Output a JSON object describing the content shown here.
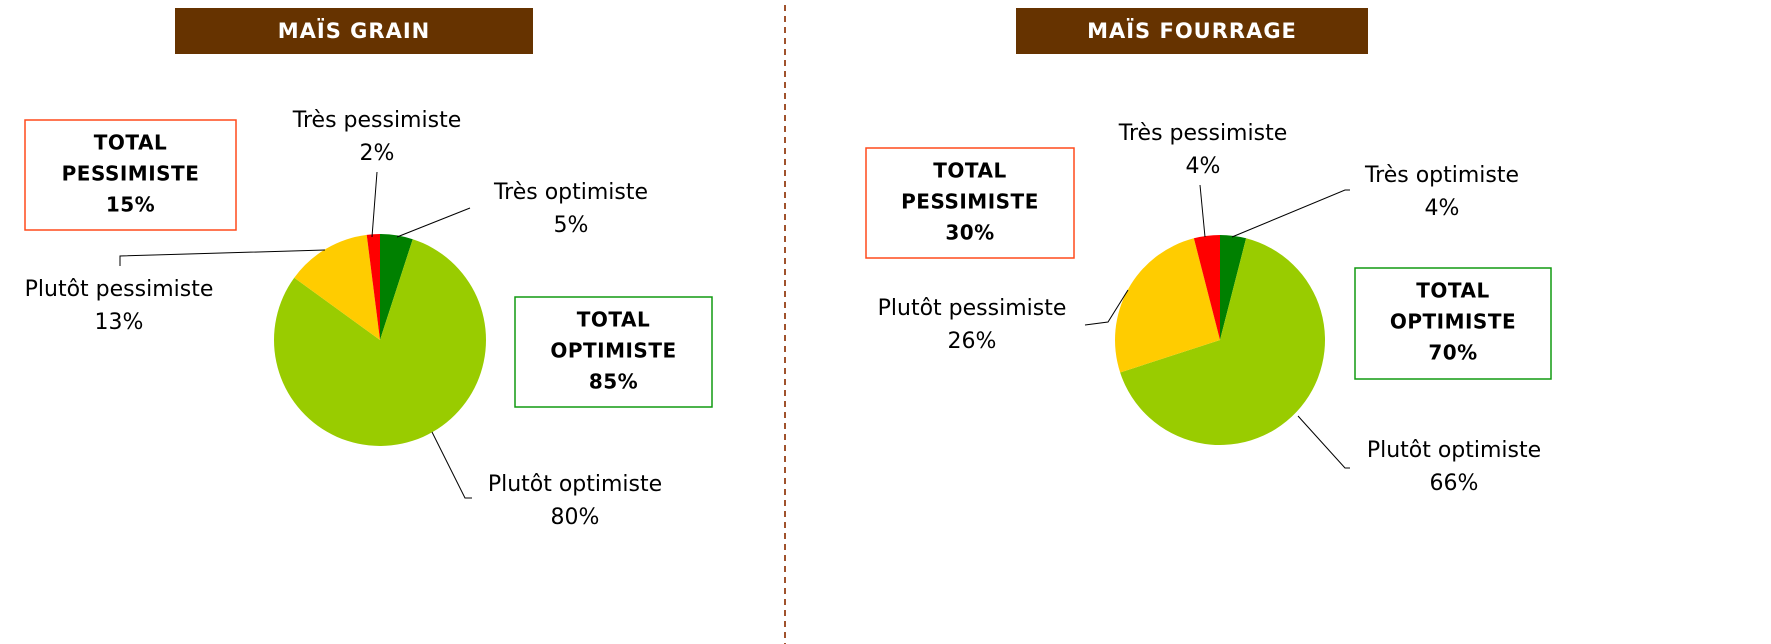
{
  "chart_data": [
    {
      "type": "pie",
      "title": "MAÏS GRAIN",
      "categories": [
        "Très optimiste",
        "Plutôt optimiste",
        "Plutôt pessimiste",
        "Très pessimiste"
      ],
      "values": [
        5,
        80,
        13,
        2
      ],
      "value_labels": [
        "5%",
        "80%",
        "13%",
        "2%"
      ],
      "colors": [
        "#008000",
        "#99cc00",
        "#ffcc00",
        "#ff0000"
      ],
      "annotations": [
        {
          "label_lines": [
            "TOTAL",
            "PESSIMISTE"
          ],
          "value": 15,
          "value_label": "15%",
          "color": "#ff4a1c"
        },
        {
          "label_lines": [
            "TOTAL",
            "OPTIMISTE"
          ],
          "value": 85,
          "value_label": "85%",
          "color": "#109a10"
        }
      ]
    },
    {
      "type": "pie",
      "title": "MAÏS FOURRAGE",
      "categories": [
        "Très optimiste",
        "Plutôt optimiste",
        "Plutôt pessimiste",
        "Très pessimiste"
      ],
      "values": [
        4,
        66,
        26,
        4
      ],
      "value_labels": [
        "4%",
        "66%",
        "26%",
        "4%"
      ],
      "colors": [
        "#008000",
        "#99cc00",
        "#ffcc00",
        "#ff0000"
      ],
      "annotations": [
        {
          "label_lines": [
            "TOTAL",
            "PESSIMISTE"
          ],
          "value": 30,
          "value_label": "30%",
          "color": "#ff4a1c"
        },
        {
          "label_lines": [
            "TOTAL",
            "OPTIMISTE"
          ],
          "value": 70,
          "value_label": "70%",
          "color": "#109a10"
        }
      ]
    }
  ]
}
